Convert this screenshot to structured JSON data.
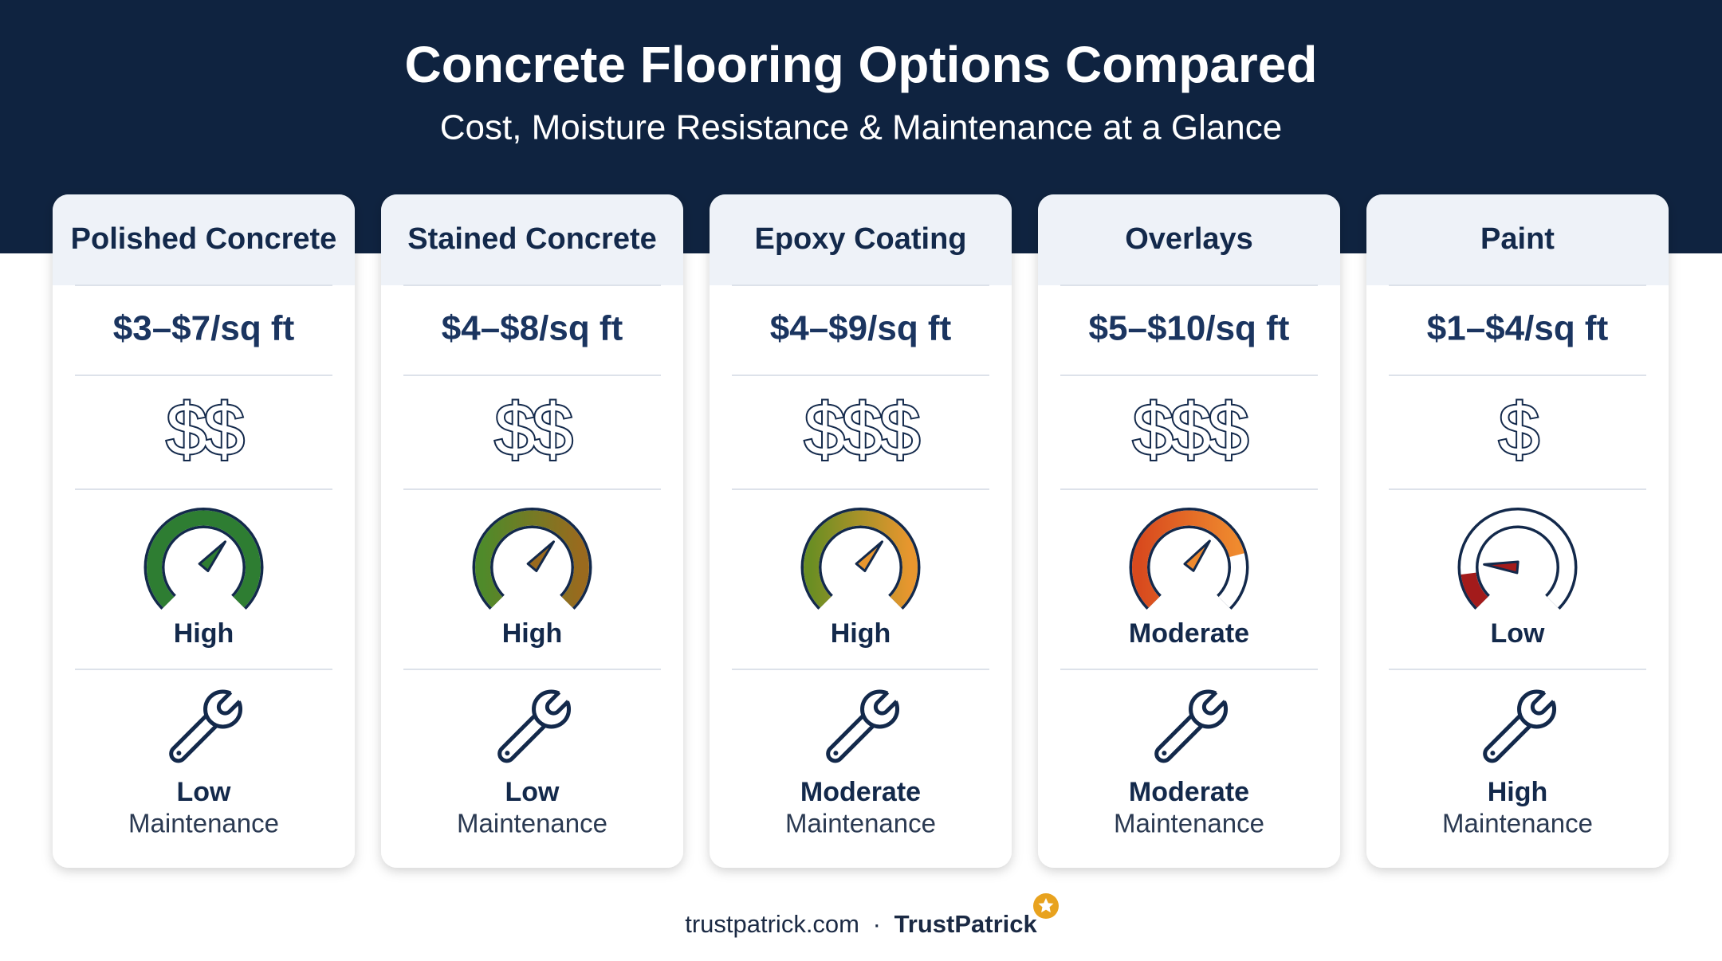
{
  "header": {
    "title": "Concrete Flooring Options Compared",
    "subtitle": "Cost, Moisture Resistance & Maintenance at a Glance"
  },
  "cards": [
    {
      "name": "Polished Concrete",
      "price": "$3–$7/sq ft",
      "cost_symbols": "$$",
      "moisture": "High",
      "maintenance_level": "Low",
      "maintenance_label": "Maintenance",
      "gauge_colors": [
        "#2e7d32",
        "#2e7d32"
      ]
    },
    {
      "name": "Stained Concrete",
      "price": "$4–$8/sq ft",
      "cost_symbols": "$$",
      "moisture": "High",
      "maintenance_level": "Low",
      "maintenance_label": "Maintenance",
      "gauge_colors": [
        "#4f8a2a",
        "#9a6a1e"
      ]
    },
    {
      "name": "Epoxy Coating",
      "price": "$4–$9/sq ft",
      "cost_symbols": "$$$",
      "moisture": "High",
      "maintenance_level": "Moderate",
      "maintenance_label": "Maintenance",
      "gauge_colors": [
        "#6b8e23",
        "#e8962e"
      ]
    },
    {
      "name": "Overlays",
      "price": "$5–$10/sq ft",
      "cost_symbols": "$$$",
      "moisture": "Moderate",
      "maintenance_level": "Moderate",
      "maintenance_label": "Maintenance",
      "gauge_colors": [
        "#d84a1e",
        "#ef8a2e"
      ]
    },
    {
      "name": "Paint",
      "price": "$1–$4/sq ft",
      "cost_symbols": "$",
      "moisture": "Low",
      "maintenance_level": "High",
      "maintenance_label": "Maintenance",
      "gauge_colors": [
        "#a31b1b",
        "#a31b1b"
      ]
    }
  ],
  "footer": {
    "site": "trustpatrick.com",
    "separator": "·",
    "brand": "TrustPatrick"
  }
}
